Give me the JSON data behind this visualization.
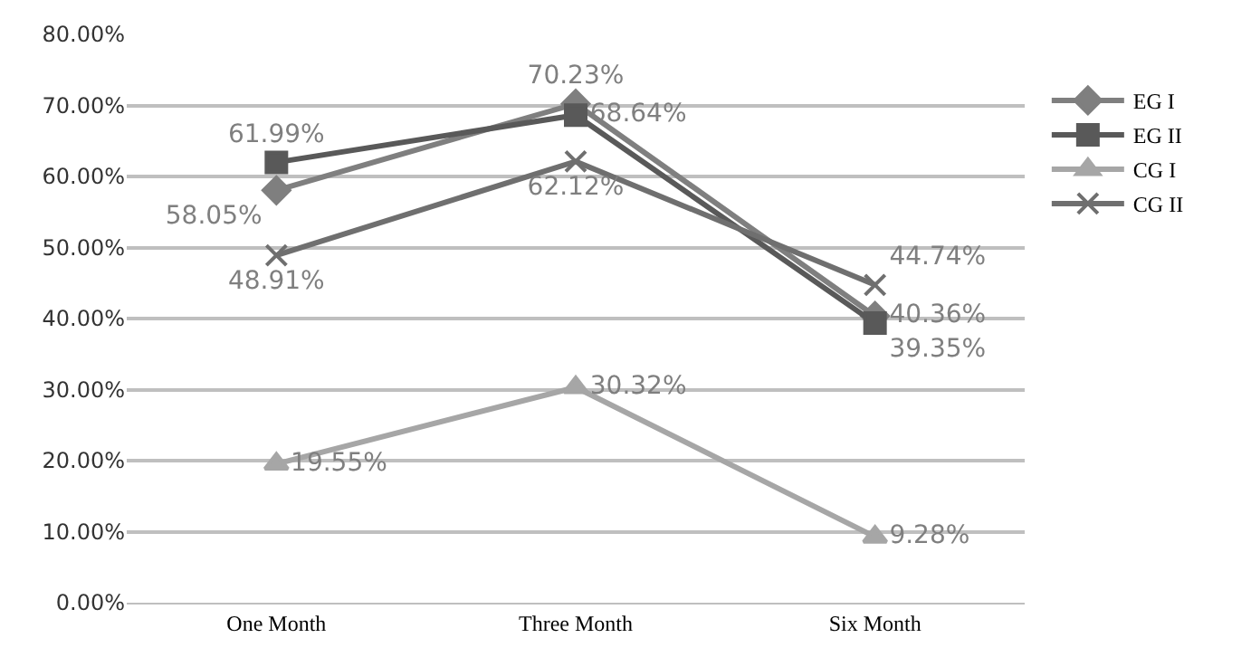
{
  "chart_data": {
    "type": "line",
    "categories": [
      "One Month",
      "Three Month",
      "Six Month"
    ],
    "series": [
      {
        "name": "EG I",
        "color": "#7f7f7f",
        "marker": "diamond",
        "values": [
          58.05,
          70.23,
          40.36
        ],
        "value_labels": [
          "58.05%",
          "70.23%",
          "40.36%"
        ]
      },
      {
        "name": "EG II",
        "color": "#595959",
        "marker": "square",
        "values": [
          61.99,
          68.64,
          39.35
        ],
        "value_labels": [
          "61.99%",
          "68.64%",
          "39.35%"
        ]
      },
      {
        "name": "CG I",
        "color": "#a6a6a6",
        "marker": "triangle",
        "values": [
          19.55,
          30.32,
          9.28
        ],
        "value_labels": [
          "19.55%",
          "30.32%",
          "9.28%"
        ]
      },
      {
        "name": "CG II",
        "color": "#6f6f6f",
        "marker": "cross",
        "values": [
          48.91,
          62.12,
          44.74
        ],
        "value_labels": [
          "48.91%",
          "62.12%",
          "44.74%"
        ]
      }
    ],
    "ylim": [
      0,
      80
    ],
    "yticks": [
      {
        "value": 0,
        "label": "0.00%"
      },
      {
        "value": 10,
        "label": "10.00%"
      },
      {
        "value": 20,
        "label": "20.00%"
      },
      {
        "value": 30,
        "label": "30.00%"
      },
      {
        "value": 40,
        "label": "40.00%"
      },
      {
        "value": 50,
        "label": "50.00%"
      },
      {
        "value": 60,
        "label": "60.00%"
      },
      {
        "value": 70,
        "label": "70.00%"
      },
      {
        "value": 80,
        "label": "80.00%"
      }
    ],
    "grid": "y",
    "legend": "right",
    "line_style": "solid"
  }
}
